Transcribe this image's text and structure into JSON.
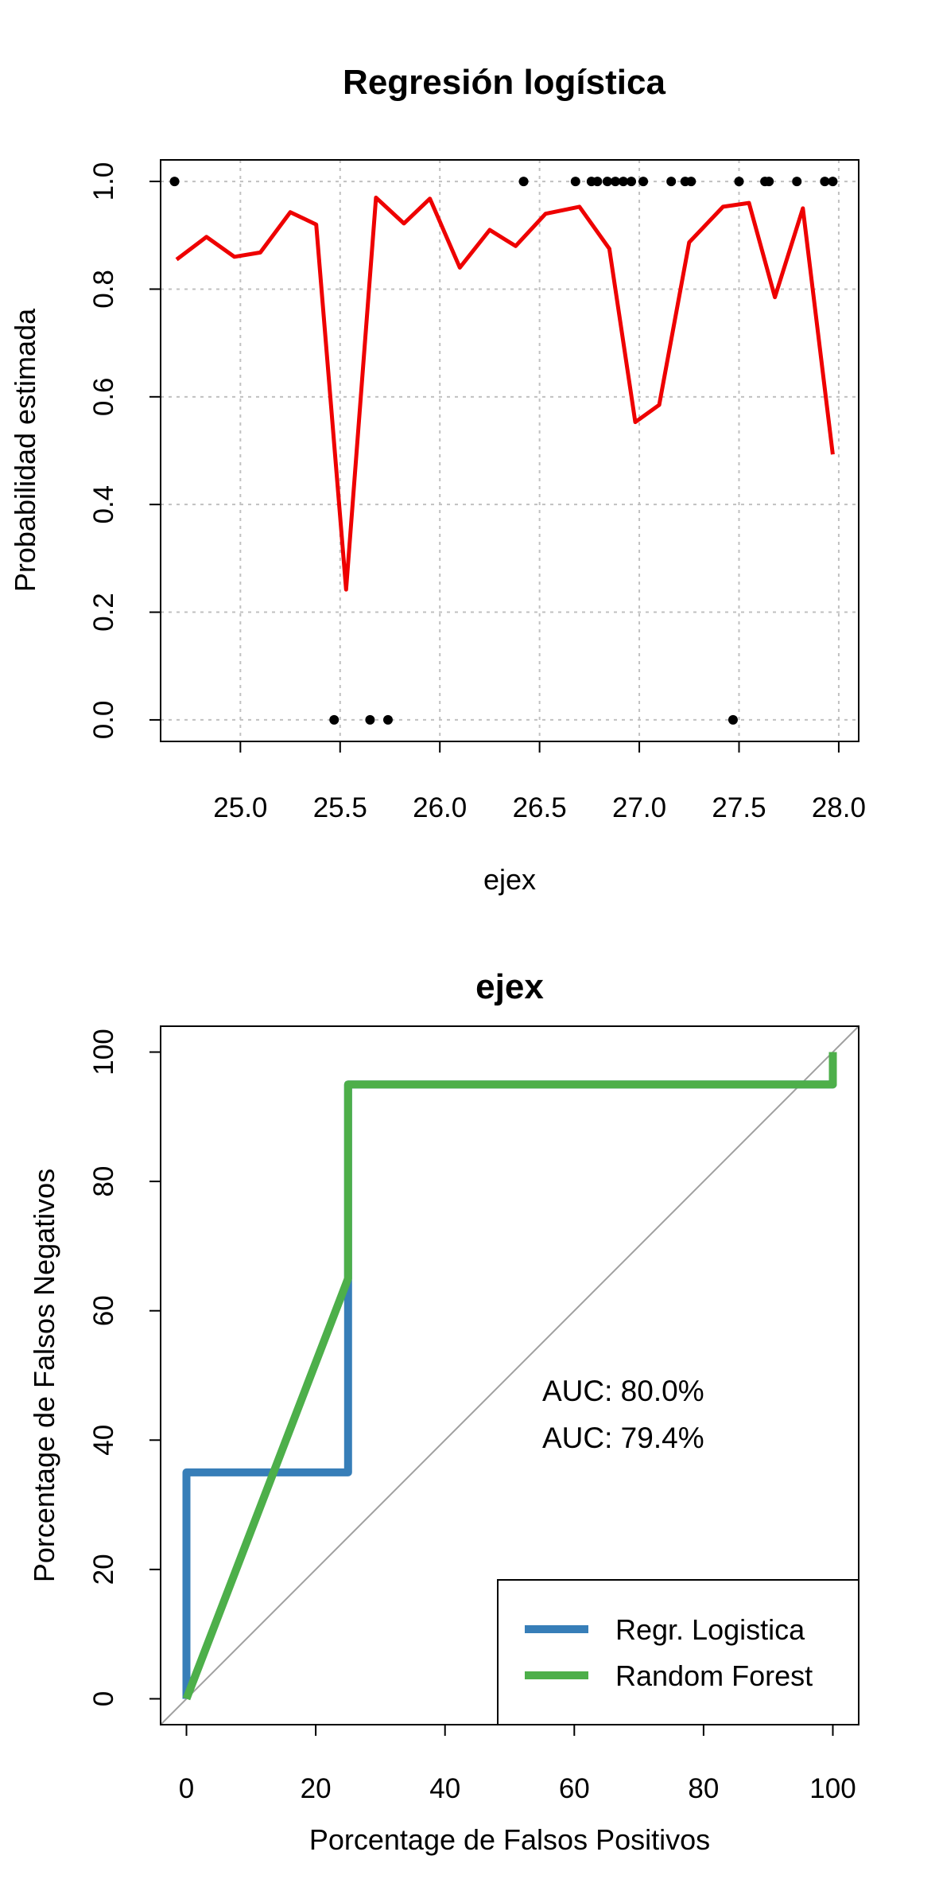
{
  "chart_data": [
    {
      "type": "line",
      "title": "Regresión logística",
      "xlabel": "ejex",
      "ylabel": "Probabilidad estimada",
      "xlim": [
        24.6,
        28.1
      ],
      "ylim": [
        -0.04,
        1.04
      ],
      "xticks": [
        "25.0",
        "25.5",
        "26.0",
        "26.5",
        "27.0",
        "27.5",
        "28.0"
      ],
      "yticks": [
        "0.0",
        "0.2",
        "0.4",
        "0.6",
        "0.8",
        "1.0"
      ],
      "grid": true,
      "line_color": "#ee0000",
      "point_color": "#000000",
      "series": [
        {
          "type": "line",
          "x": [
            24.68,
            24.83,
            24.97,
            25.1,
            25.25,
            25.38,
            25.53,
            25.68,
            25.82,
            25.95,
            26.1,
            26.25,
            26.38,
            26.53,
            26.7,
            26.85,
            26.98,
            27.1,
            27.25,
            27.42,
            27.55,
            27.68,
            27.82,
            27.97
          ],
          "y": [
            0.855,
            0.897,
            0.86,
            0.868,
            0.943,
            0.92,
            0.242,
            0.97,
            0.922,
            0.968,
            0.84,
            0.91,
            0.88,
            0.94,
            0.953,
            0.875,
            0.553,
            0.585,
            0.887,
            0.953,
            0.96,
            0.785,
            0.95,
            0.493
          ]
        },
        {
          "type": "scatter",
          "x": [
            24.67,
            25.47,
            25.65,
            25.74,
            26.42,
            26.68,
            26.76,
            26.79,
            26.84,
            26.88,
            26.92,
            26.96,
            27.02,
            27.16,
            27.23,
            27.26,
            27.47,
            27.5,
            27.63,
            27.65,
            27.79,
            27.93,
            27.97
          ],
          "y": [
            1,
            0,
            0,
            0,
            1,
            1,
            1,
            1,
            1,
            1,
            1,
            1,
            1,
            1,
            1,
            1,
            0,
            1,
            1,
            1,
            1,
            1,
            1
          ]
        }
      ]
    },
    {
      "type": "line",
      "title": "ejex",
      "xlabel": "Porcentage de Falsos Positivos",
      "ylabel": "Porcentage de Falsos Negativos",
      "xlim": [
        -4,
        104
      ],
      "ylim": [
        -4,
        104
      ],
      "xticks": [
        "0",
        "20",
        "40",
        "60",
        "80",
        "100"
      ],
      "yticks": [
        "0",
        "20",
        "40",
        "60",
        "80",
        "100"
      ],
      "reference_line_color": "#a0a0a0",
      "legend_position": "bottom-right",
      "series": [
        {
          "name": "Regr. Logistica",
          "color": "#377eb8",
          "auc": "AUC: 80.0%",
          "x": [
            0,
            0,
            25,
            25,
            100,
            100
          ],
          "y": [
            0,
            35,
            35,
            95,
            95,
            100
          ]
        },
        {
          "name": "Random Forest",
          "color": "#4daf4a",
          "auc": "AUC: 79.4%",
          "x": [
            0,
            25,
            25,
            100,
            100
          ],
          "y": [
            0,
            65,
            95,
            95,
            100
          ]
        }
      ]
    }
  ]
}
